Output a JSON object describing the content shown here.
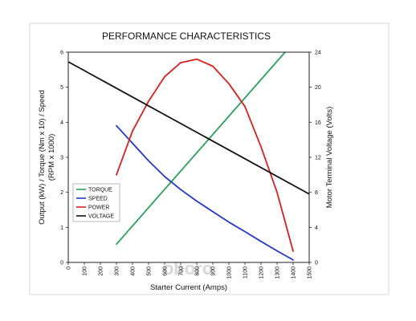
{
  "chart_data": {
    "type": "line",
    "title": "PERFORMANCE CHARACTERISTICS",
    "xlabel": "Starter Current (Amps)",
    "ylabel_lines": [
      "Output (kW) / Torque (Nm x 10) / Speed",
      "(RPM x 1000)"
    ],
    "y2label": "Motor Terminal Voltage (Volts)",
    "xlim": [
      0,
      1500
    ],
    "ylim": [
      0,
      6
    ],
    "y2lim": [
      0,
      24
    ],
    "x_ticks": [
      0,
      100,
      200,
      300,
      400,
      500,
      600,
      700,
      800,
      900,
      1000,
      1100,
      1200,
      1300,
      1400,
      1500
    ],
    "y_ticks": [
      0,
      1,
      2,
      3,
      4,
      5,
      6
    ],
    "y2_ticks": [
      0,
      4,
      8,
      12,
      16,
      20,
      24
    ],
    "grid": false,
    "legend_position": "lower-left",
    "series": [
      {
        "name": "TORQUE",
        "color": "#2e9e5e",
        "axis": "left",
        "x": [
          300,
          1350
        ],
        "y": [
          0.52,
          6.0
        ]
      },
      {
        "name": "SPEED",
        "color": "#2238c8",
        "axis": "left",
        "x": [
          300,
          400,
          500,
          600,
          700,
          800,
          900,
          1000,
          1100,
          1200,
          1300,
          1400
        ],
        "y": [
          3.9,
          3.4,
          2.9,
          2.45,
          2.08,
          1.75,
          1.45,
          1.15,
          0.88,
          0.6,
          0.33,
          0.07
        ]
      },
      {
        "name": "POWER",
        "color": "#d42020",
        "axis": "left",
        "x": [
          300,
          400,
          500,
          600,
          700,
          800,
          900,
          1000,
          1100,
          1200,
          1300,
          1400
        ],
        "y": [
          2.5,
          3.75,
          4.6,
          5.3,
          5.7,
          5.8,
          5.6,
          5.1,
          4.45,
          3.3,
          2.0,
          0.32
        ]
      },
      {
        "name": "VOLTAGE",
        "color": "#111111",
        "axis": "right",
        "x": [
          0,
          1500
        ],
        "y": [
          22.9,
          7.8
        ]
      }
    ]
  },
  "watermark": "oboro"
}
